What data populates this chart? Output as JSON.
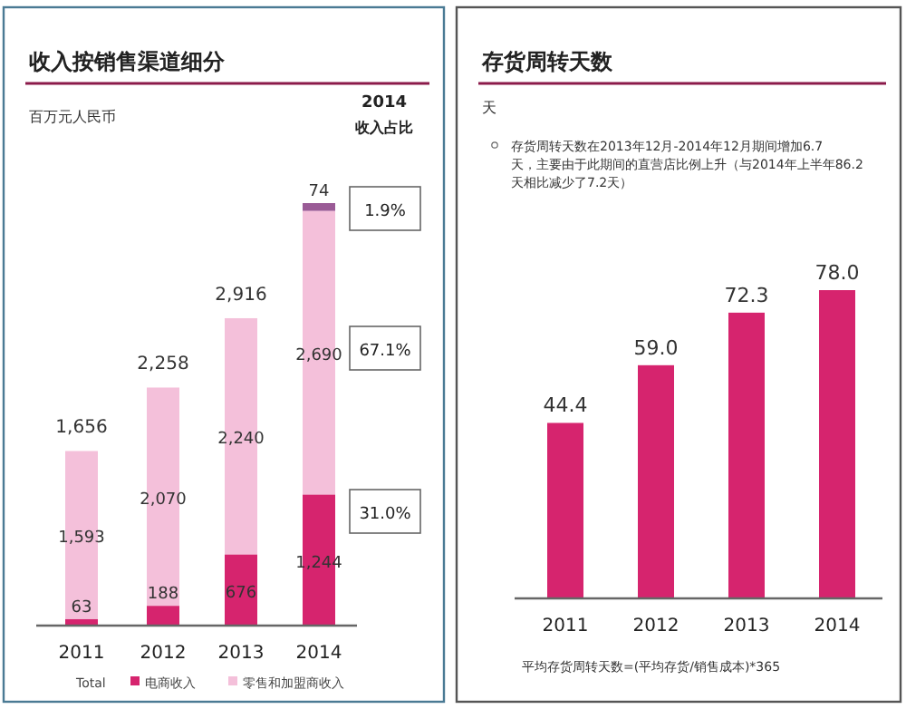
{
  "chart_data": [
    {
      "type": "bar",
      "title": "收入按销售渠道细分",
      "subtitle": "百万元人民币",
      "categories": [
        "2011",
        "2012",
        "2013",
        "2014"
      ],
      "stacked": true,
      "data_labels": true,
      "legend": "bottom",
      "series": [
        {
          "name": "电商收入",
          "color": "#d6246e",
          "values": [
            63,
            188,
            676,
            1244
          ],
          "value_labels": [
            "63",
            "188",
            "676",
            "1,244"
          ]
        },
        {
          "name": "零售和加盟商收入",
          "color": "#f4c0da",
          "values": [
            1593,
            2070,
            2240,
            2690
          ],
          "value_labels": [
            "1,593",
            "2,070",
            "2,240",
            "2,690"
          ]
        },
        {
          "color": "#9a5b96",
          "values": [
            null,
            null,
            null,
            74
          ],
          "value_labels": [
            null,
            null,
            null,
            "74"
          ]
        }
      ],
      "totals": [
        "1,656",
        "2,258",
        "2,916",
        null
      ],
      "annotations": [
        "2014",
        "收入占比",
        "1.9%",
        "67.1%",
        "31.0%",
        "Total"
      ]
    },
    {
      "type": "bar",
      "title": "存货周转天数",
      "subtitle": "天",
      "categories": [
        "2011",
        "2012",
        "2013",
        "2014"
      ],
      "color": "#d6246e",
      "values": [
        44.4,
        59.0,
        72.3,
        78.0
      ],
      "value_labels": [
        "44.4",
        "59.0",
        "72.3",
        "78.0"
      ],
      "data_labels": true,
      "annotations": [
        "存货周转天数在2013年12月-2014年12月期间增加6.7天，主要由于此期间的直营店比例上升（与2014年上半年86.2天相比减少了7.2天）",
        "平均存货周转天数=(平均存货/销售成本)*365"
      ]
    }
  ]
}
